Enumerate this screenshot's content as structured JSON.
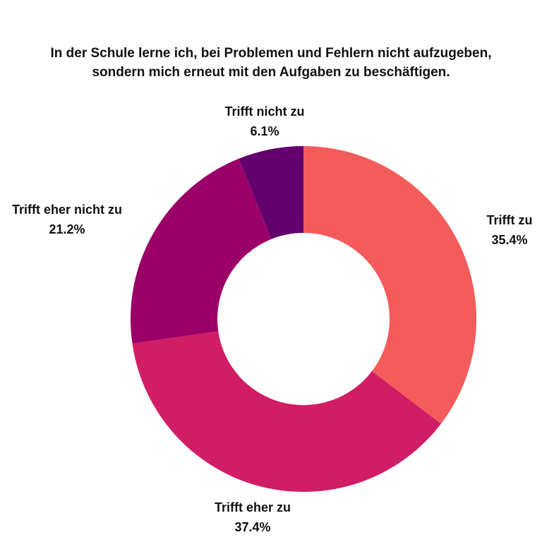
{
  "chart_data": {
    "type": "pie",
    "donut": true,
    "title_lines": [
      "In der Schule lerne ich, bei Problemen und Fehlern nicht aufzugeben,",
      "sondern mich erneut mit den Aufgaben zu beschäftigen."
    ],
    "slices": [
      {
        "label": "Trifft zu",
        "value": 35.4,
        "value_label": "35.4%",
        "color": "#F45B5B"
      },
      {
        "label": "Trifft eher zu",
        "value": 37.4,
        "value_label": "37.4%",
        "color": "#D11C66"
      },
      {
        "label": "Trifft eher nicht zu",
        "value": 21.2,
        "value_label": "21.2%",
        "color": "#9B0068"
      },
      {
        "label": "Trifft nicht zu",
        "value": 6.1,
        "value_label": "6.1%",
        "color": "#63006B"
      }
    ]
  }
}
